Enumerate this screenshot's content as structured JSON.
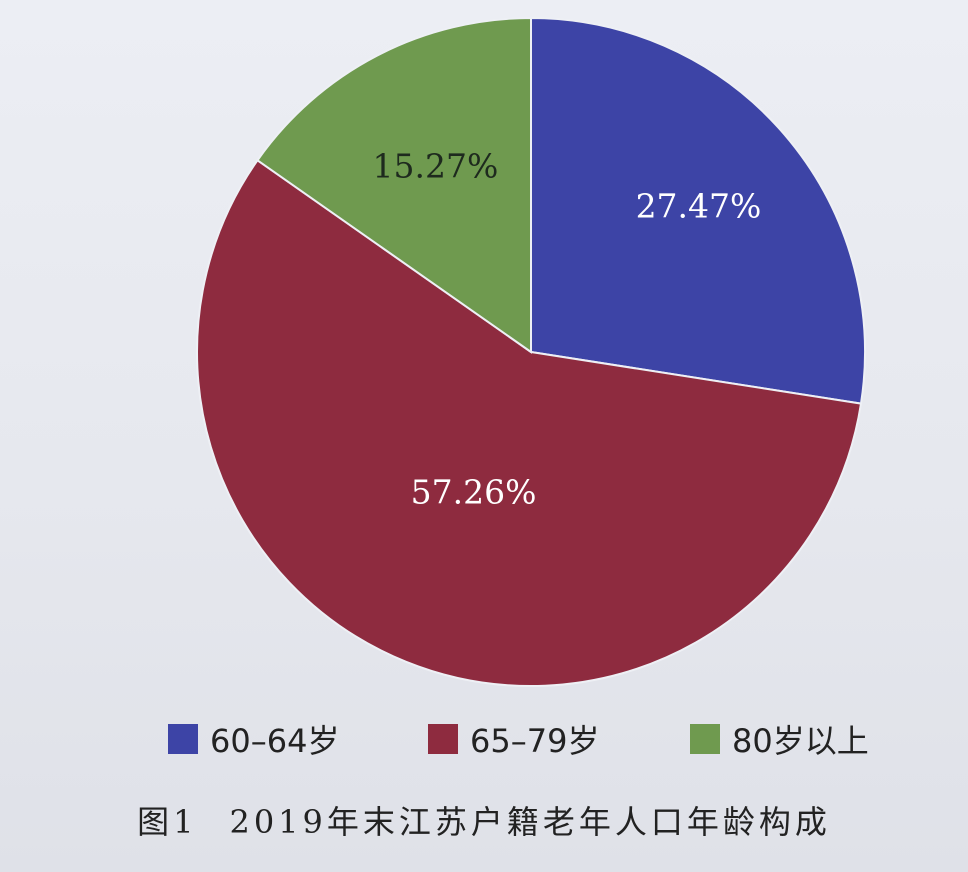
{
  "chart_data": {
    "type": "pie",
    "categories": [
      "60-64岁",
      "65-79岁",
      "80岁以上"
    ],
    "values": [
      27.47,
      57.26,
      15.27
    ],
    "value_labels": [
      "27.47%",
      "57.26%",
      "15.27%"
    ],
    "colors": [
      "#3d44a6",
      "#8e2b3f",
      "#6f9a4f"
    ],
    "label_colors": [
      "#ffffff",
      "#ffffff",
      "#1e2a1e"
    ],
    "start_angle_deg": 0,
    "direction": "clockwise",
    "legend": {
      "placement": "bottom",
      "entries": [
        "60–64岁",
        "65–79岁",
        "80岁以上"
      ]
    },
    "caption_number": "图1",
    "caption_text": "2019年末江苏户籍老年人口年龄构成"
  }
}
